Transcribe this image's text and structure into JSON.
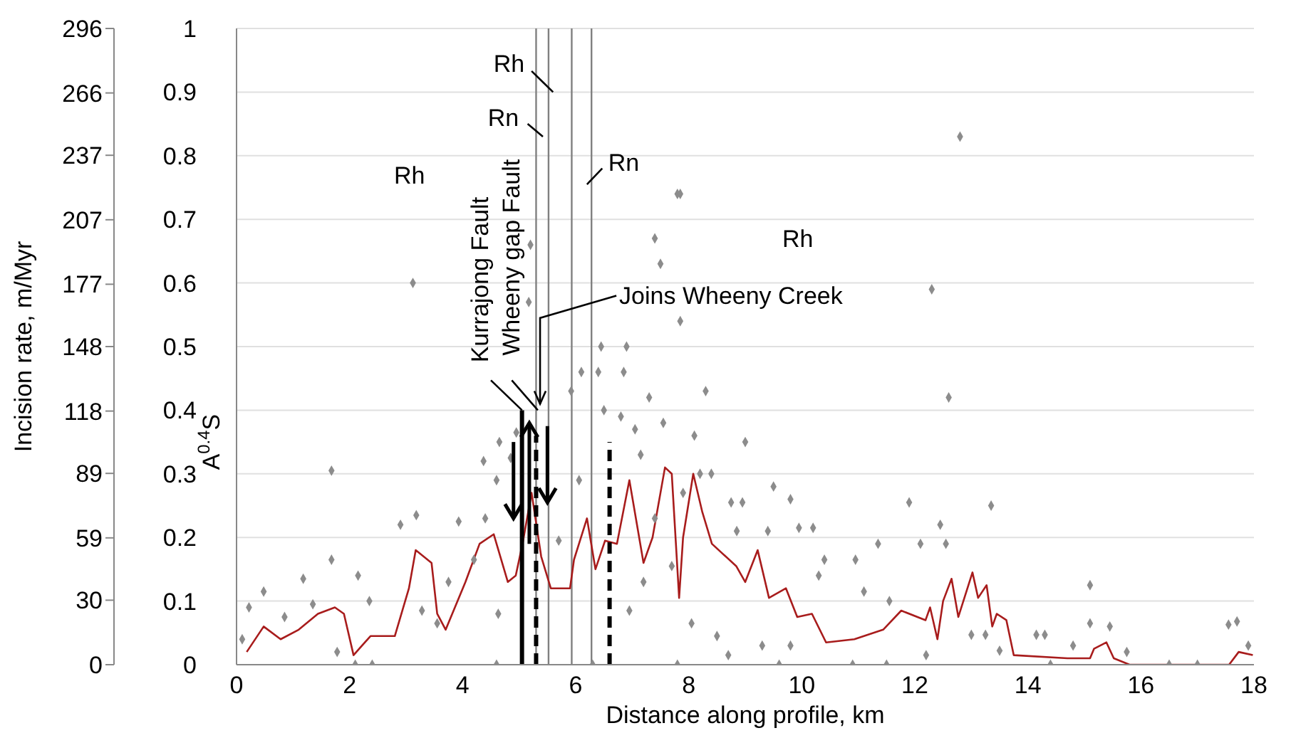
{
  "chart_data": {
    "type": "scatter",
    "xlabel": "Distance along profile, km",
    "ylabel": "A$^{0.4}$S",
    "y2label": "Incision rate, m/Myr",
    "xlim": [
      0,
      18
    ],
    "xticks": [
      0,
      2,
      4,
      6,
      8,
      10,
      12,
      14,
      16,
      18
    ],
    "ylim": [
      0,
      1
    ],
    "yticks": [
      0,
      0.1,
      0.2,
      0.3,
      0.4,
      0.5,
      0.6,
      0.7,
      0.8,
      0.9,
      1
    ],
    "y2lim": [
      0,
      296
    ],
    "y2ticks": [
      0,
      30,
      59,
      89,
      118,
      148,
      177,
      207,
      237,
      266,
      296
    ],
    "grid": "y",
    "series": [
      {
        "type": "scatter",
        "color": "#8c8c8c",
        "marker": "diamond",
        "x": [
          3.12,
          12.8,
          12.3,
          12.6,
          7.8,
          7.85,
          7.4,
          7.5,
          7.85,
          6.45,
          6.9,
          6.1,
          8.3,
          5.2,
          5.17,
          6.4,
          6.85,
          6.5,
          6.8,
          7.3,
          7.55,
          7.05,
          8.1,
          9.0,
          7.15,
          9.5,
          9.8,
          8.2,
          8.4,
          11.9,
          12.1,
          11.35,
          10.95,
          10.4,
          9.95,
          10.2,
          9.4,
          8.85,
          8.75,
          8.95,
          7.9,
          7.4,
          7.7,
          7.2,
          6.95,
          8.05,
          8.5,
          8.7,
          9.3,
          9.8,
          10.3,
          11.1,
          11.55,
          12.2,
          1.68,
          1.68,
          2.15,
          2.9,
          3.18,
          3.93,
          4.37,
          4.65,
          4.85,
          4.95,
          4.6,
          4.4,
          0.48,
          0.22,
          1.18,
          1.35,
          0.85,
          0.1,
          1.78,
          2.35,
          3.28,
          3.55,
          3.75,
          4.2,
          4.63,
          5.7,
          6.06,
          5.92,
          15.1,
          15.1,
          15.45,
          15.75,
          14.15,
          14.3,
          14.8,
          17.55,
          17.7,
          17.9,
          13.35,
          12.55,
          12.45,
          13.0,
          13.25,
          13.5,
          2.1,
          2.4,
          4.6,
          6.3,
          7.8,
          9.6,
          10.9,
          11.5,
          14.4,
          16.5,
          17.0
        ],
        "values": [
          0.6,
          0.83,
          0.59,
          0.42,
          0.74,
          0.54,
          0.67,
          0.63,
          0.74,
          0.5,
          0.5,
          0.46,
          0.43,
          0.66,
          0.57,
          0.46,
          0.46,
          0.4,
          0.39,
          0.42,
          0.38,
          0.37,
          0.36,
          0.35,
          0.33,
          0.28,
          0.26,
          0.3,
          0.3,
          0.255,
          0.19,
          0.19,
          0.165,
          0.165,
          0.215,
          0.215,
          0.21,
          0.21,
          0.255,
          0.255,
          0.27,
          0.23,
          0.155,
          0.13,
          0.085,
          0.065,
          0.045,
          0.015,
          0.03,
          0.03,
          0.14,
          0.115,
          0.1,
          0.015,
          0.305,
          0.165,
          0.14,
          0.22,
          0.235,
          0.225,
          0.32,
          0.35,
          0.325,
          0.365,
          0.29,
          0.23,
          0.115,
          0.09,
          0.135,
          0.095,
          0.075,
          0.04,
          0.02,
          0.1,
          0.085,
          0.065,
          0.13,
          0.165,
          0.08,
          0.195,
          0.29,
          0.43,
          0.125,
          0.065,
          0.06,
          0.02,
          0.047,
          0.047,
          0.03,
          0.063,
          0.068,
          0.03,
          0.25,
          0.19,
          0.22,
          0.047,
          0.047,
          0.022,
          0,
          0,
          0,
          0,
          0,
          0,
          0,
          0,
          0,
          0,
          0
        ]
      },
      {
        "type": "line",
        "color": "#a81c1c",
        "marker": "none",
        "line_style": "solid",
        "x": [
          0.18,
          0.48,
          0.78,
          1.1,
          1.44,
          1.74,
          1.9,
          2.07,
          2.37,
          2.8,
          3.05,
          3.17,
          3.45,
          3.55,
          3.7,
          4.05,
          4.3,
          4.55,
          4.8,
          4.94,
          5.06,
          5.22,
          5.39,
          5.56,
          5.9,
          5.97,
          6.2,
          6.35,
          6.52,
          6.73,
          6.95,
          7.2,
          7.36,
          7.58,
          7.7,
          7.83,
          7.9,
          8.08,
          8.24,
          8.41,
          8.84,
          9.0,
          9.22,
          9.42,
          9.72,
          9.92,
          10.18,
          10.43,
          10.93,
          11.44,
          11.76,
          12.19,
          12.27,
          12.4,
          12.5,
          12.65,
          12.77,
          13.02,
          13.12,
          13.27,
          13.37,
          13.45,
          13.62,
          13.75,
          14.7,
          15.1,
          15.17,
          15.39,
          15.52,
          15.8,
          17.56,
          17.73,
          17.98
        ],
        "values": [
          0.02,
          0.06,
          0.04,
          0.055,
          0.08,
          0.09,
          0.08,
          0.015,
          0.045,
          0.045,
          0.12,
          0.18,
          0.16,
          0.08,
          0.055,
          0.13,
          0.19,
          0.205,
          0.13,
          0.14,
          0.19,
          0.27,
          0.17,
          0.12,
          0.12,
          0.165,
          0.23,
          0.15,
          0.195,
          0.19,
          0.29,
          0.16,
          0.2,
          0.31,
          0.3,
          0.105,
          0.2,
          0.3,
          0.24,
          0.19,
          0.155,
          0.13,
          0.18,
          0.105,
          0.12,
          0.075,
          0.08,
          0.035,
          0.04,
          0.055,
          0.085,
          0.07,
          0.09,
          0.04,
          0.1,
          0.135,
          0.075,
          0.145,
          0.105,
          0.125,
          0.06,
          0.08,
          0.07,
          0.015,
          0.01,
          0.01,
          0.025,
          0.035,
          0.01,
          0,
          0,
          0.02,
          0.015
        ]
      },
      {
        "type": "line",
        "color": "#000000",
        "marker": "none",
        "line_style": "solid",
        "x": [
          5.05,
          5.05
        ],
        "values": [
          0,
          0.4
        ]
      },
      {
        "type": "line",
        "color": "#000000",
        "marker": "none",
        "line_style": "dashed",
        "x": [
          5.3,
          5.3
        ],
        "values": [
          0,
          0.36
        ]
      },
      {
        "type": "line",
        "color": "#000000",
        "marker": "none",
        "line_style": "dashed",
        "x": [
          6.6,
          6.6
        ],
        "values": [
          0,
          0.35
        ]
      }
    ],
    "ref_lines": [
      {
        "axis": "x",
        "value": 5.3,
        "color": "#808080"
      },
      {
        "axis": "x",
        "value": 5.52,
        "color": "#808080"
      },
      {
        "axis": "x",
        "value": 5.93,
        "color": "#808080"
      },
      {
        "axis": "x",
        "value": 6.28,
        "color": "#808080"
      }
    ],
    "annotations": [
      "Rh",
      "Rh",
      "Rn",
      "Rn",
      "Rh",
      "Kurrajong Fault",
      "Wheeny gap Fault",
      {
        "text": "Joins Wheeny Creek",
        "x": 5.37,
        "y": 0.41
      }
    ]
  }
}
